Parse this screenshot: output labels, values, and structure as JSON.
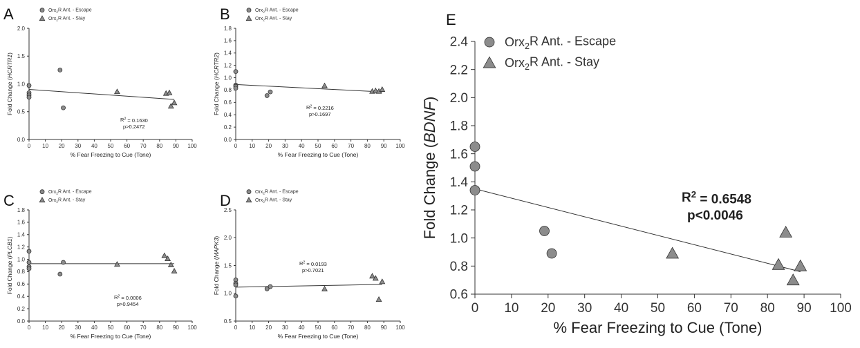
{
  "chart_data": [
    {
      "panel": "A",
      "type": "scatter",
      "xlabel": "% Fear Freezing to Cue (Tone)",
      "ylabel_prefix": "Fold Change (",
      "ylabel_gene": "HCRTR1",
      "ylabel_suffix": ")",
      "xlim": [
        0,
        100
      ],
      "ylim": [
        0.0,
        2.0
      ],
      "xticks": [
        0,
        10,
        20,
        30,
        40,
        50,
        60,
        70,
        80,
        90,
        100
      ],
      "yticks": [
        "0.0",
        "0.5",
        "1.0",
        "1.5",
        "2.0"
      ],
      "legend": [
        "Orx2R Ant. - Escape",
        "Orx2R Ant. - Stay"
      ],
      "annotation": [
        "R2 = 0.1630",
        "p>0.2472"
      ],
      "fit": [
        [
          0,
          0.9
        ],
        [
          89,
          0.72
        ]
      ],
      "series": [
        {
          "name": "Orx2R Ant. - Escape",
          "marker": "circle",
          "points": [
            [
              0,
              0.97
            ],
            [
              0,
              0.84
            ],
            [
              0,
              0.8
            ],
            [
              0,
              0.76
            ],
            [
              19,
              1.25
            ],
            [
              21,
              0.57
            ]
          ]
        },
        {
          "name": "Orx2R Ant. - Stay",
          "marker": "triangle",
          "points": [
            [
              54,
              0.86
            ],
            [
              84,
              0.83
            ],
            [
              86,
              0.84
            ],
            [
              87,
              0.6
            ],
            [
              89,
              0.66
            ]
          ]
        }
      ]
    },
    {
      "panel": "B",
      "type": "scatter",
      "xlabel": "% Fear Freezing to Cue (Tone)",
      "ylabel_prefix": "Fold Change (",
      "ylabel_gene": "HCRTR2",
      "ylabel_suffix": ")",
      "xlim": [
        0,
        100
      ],
      "ylim": [
        0.0,
        1.8
      ],
      "xticks": [
        0,
        10,
        20,
        30,
        40,
        50,
        60,
        70,
        80,
        90,
        100
      ],
      "yticks": [
        "0.0",
        "0.2",
        "0.4",
        "0.6",
        "0.8",
        "1.0",
        "1.2",
        "1.4",
        "1.6",
        "1.8"
      ],
      "legend": [
        "Orx2R Ant. - Escape",
        "Orx2R Ant. - Stay"
      ],
      "annotation": [
        "R2 = 0.2216",
        "p>0.1697"
      ],
      "fit": [
        [
          0,
          0.89
        ],
        [
          89,
          0.77
        ]
      ],
      "series": [
        {
          "name": "Orx2R Ant. - Escape",
          "marker": "circle",
          "points": [
            [
              0,
              1.1
            ],
            [
              0,
              0.88
            ],
            [
              0,
              0.86
            ],
            [
              0,
              0.83
            ],
            [
              19,
              0.71
            ],
            [
              21,
              0.77
            ]
          ]
        },
        {
          "name": "Orx2R Ant. - Stay",
          "marker": "triangle",
          "points": [
            [
              54,
              0.87
            ],
            [
              83,
              0.78
            ],
            [
              85,
              0.79
            ],
            [
              87,
              0.78
            ],
            [
              89,
              0.81
            ]
          ]
        }
      ]
    },
    {
      "panel": "C",
      "type": "scatter",
      "xlabel": "% Fear Freezing to Cue (Tone)",
      "ylabel_prefix": "Fold Change (",
      "ylabel_gene": "PLCB1",
      "ylabel_suffix": ")",
      "xlim": [
        0,
        100
      ],
      "ylim": [
        0.0,
        1.8
      ],
      "xticks": [
        0,
        10,
        20,
        30,
        40,
        50,
        60,
        70,
        80,
        90,
        100
      ],
      "yticks": [
        "0.0",
        "0.2",
        "0.4",
        "0.6",
        "0.8",
        "1.0",
        "1.2",
        "1.4",
        "1.6",
        "1.8"
      ],
      "legend": [
        "Orx2R Ant. - Escape",
        "Orx2R Ant. - Stay"
      ],
      "annotation": [
        "R2 = 0.0006",
        "p>0.9454"
      ],
      "fit": [
        [
          0,
          0.93
        ],
        [
          89,
          0.93
        ]
      ],
      "series": [
        {
          "name": "Orx2R Ant. - Escape",
          "marker": "circle",
          "points": [
            [
              0,
              1.13
            ],
            [
              0,
              0.95
            ],
            [
              0,
              0.88
            ],
            [
              0,
              0.85
            ],
            [
              19,
              0.76
            ],
            [
              21,
              0.95
            ]
          ]
        },
        {
          "name": "Orx2R Ant. - Stay",
          "marker": "triangle",
          "points": [
            [
              54,
              0.92
            ],
            [
              83,
              1.06
            ],
            [
              85,
              1.01
            ],
            [
              87,
              0.91
            ],
            [
              89,
              0.81
            ]
          ]
        }
      ]
    },
    {
      "panel": "D",
      "type": "scatter",
      "xlabel": "% Fear Freezing to Cue (Tone)",
      "ylabel_prefix": "Fold Change (",
      "ylabel_gene": "MAPK3",
      "ylabel_suffix": ")",
      "xlim": [
        0,
        100
      ],
      "ylim": [
        0.5,
        2.5
      ],
      "xticks": [
        0,
        10,
        20,
        30,
        40,
        50,
        60,
        70,
        80,
        90,
        100
      ],
      "yticks": [
        "0.5",
        "1.0",
        "1.5",
        "2.0",
        "2.5"
      ],
      "legend": [
        "Orx2R Ant. - Escape",
        "Orx2R Ant. - Stay"
      ],
      "annotation": [
        "R2 = 0.0193",
        "p>0.7021"
      ],
      "fit": [
        [
          0,
          1.11
        ],
        [
          89,
          1.16
        ]
      ],
      "series": [
        {
          "name": "Orx2R Ant. - Escape",
          "marker": "circle",
          "points": [
            [
              0,
              1.24
            ],
            [
              0,
              1.18
            ],
            [
              0,
              1.15
            ],
            [
              0,
              0.95
            ],
            [
              19,
              1.08
            ],
            [
              21,
              1.12
            ]
          ]
        },
        {
          "name": "Orx2R Ant. - Stay",
          "marker": "triangle",
          "points": [
            [
              54,
              1.08
            ],
            [
              83,
              1.31
            ],
            [
              85,
              1.27
            ],
            [
              87,
              0.89
            ],
            [
              89,
              1.21
            ]
          ]
        }
      ]
    },
    {
      "panel": "E",
      "type": "scatter",
      "xlabel": "% Fear Freezing to Cue (Tone)",
      "ylabel_prefix": "Fold Change (",
      "ylabel_gene": "BDNF",
      "ylabel_suffix": ")",
      "xlim": [
        0,
        100
      ],
      "ylim": [
        0.6,
        2.4
      ],
      "xticks": [
        0,
        10,
        20,
        30,
        40,
        50,
        60,
        70,
        80,
        90,
        100
      ],
      "yticks": [
        "0.6",
        "0.8",
        "1.0",
        "1.2",
        "1.4",
        "1.6",
        "1.8",
        "2.0",
        "2.2",
        "2.4"
      ],
      "legend": [
        "Orx2R Ant. - Escape",
        "Orx2R Ant. - Stay"
      ],
      "annotation": [
        "R2 = 0.6548",
        "p<0.0046"
      ],
      "fit": [
        [
          0,
          1.35
        ],
        [
          89,
          0.76
        ]
      ],
      "series": [
        {
          "name": "Orx2R Ant. - Escape",
          "marker": "circle",
          "points": [
            [
              0,
              1.65
            ],
            [
              0,
              1.51
            ],
            [
              0,
              1.34
            ],
            [
              19,
              1.05
            ],
            [
              21,
              0.89
            ]
          ]
        },
        {
          "name": "Orx2R Ant. - Stay",
          "marker": "triangle",
          "points": [
            [
              54,
              0.89
            ],
            [
              83,
              0.81
            ],
            [
              85,
              1.04
            ],
            [
              87,
              0.7
            ],
            [
              89,
              0.8
            ]
          ]
        }
      ]
    }
  ]
}
